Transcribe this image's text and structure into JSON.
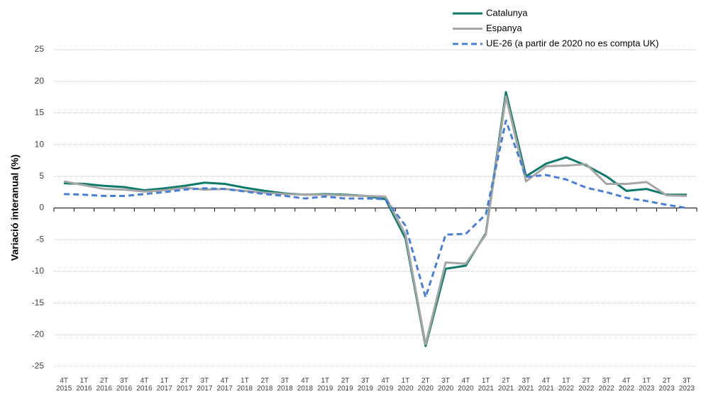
{
  "chart_data": {
    "type": "line",
    "y_label": "Variació interanual (%)",
    "categories": [
      "4T 2015",
      "1T 2016",
      "2T 2016",
      "3T 2016",
      "4T 2016",
      "1T 2017",
      "2T 2017",
      "3T 2017",
      "4T 2017",
      "1T 2018",
      "2T 2018",
      "3T 2018",
      "4T 2018",
      "1T 2019",
      "2T 2019",
      "3T 2019",
      "4T 2019",
      "1T 2020",
      "2T 2020",
      "3T 2020",
      "4T 2020",
      "1T 2021",
      "2T 2021",
      "3T 2021",
      "4T 2021",
      "1T 2022",
      "2T 2022",
      "3T 2022",
      "4T 2022",
      "1T 2023",
      "2T 2023",
      "3T 2023"
    ],
    "series": [
      {
        "name": "Catalunya",
        "color": "#0e7a6a",
        "dash": false,
        "values": [
          3.9,
          3.8,
          3.5,
          3.3,
          2.8,
          3.1,
          3.5,
          4.0,
          3.8,
          3.2,
          2.7,
          2.3,
          2.1,
          2.2,
          2.1,
          1.9,
          1.4,
          -4.8,
          -21.8,
          -9.6,
          -9.1,
          -4.0,
          18.3,
          5.0,
          7.0,
          8.0,
          6.7,
          5.0,
          2.7,
          3.0,
          2.1,
          2.1
        ]
      },
      {
        "name": "Espanya",
        "color": "#a6a6a6",
        "dash": false,
        "values": [
          4.2,
          3.6,
          3.0,
          2.9,
          2.6,
          2.8,
          3.2,
          2.9,
          3.0,
          2.7,
          2.4,
          2.2,
          2.1,
          2.1,
          2.0,
          1.9,
          1.8,
          -4.2,
          -21.5,
          -8.6,
          -8.8,
          -4.2,
          17.6,
          4.2,
          6.6,
          6.7,
          6.9,
          3.8,
          3.8,
          4.1,
          2.0,
          1.9
        ]
      },
      {
        "name": "UE-26 (a partir de 2020 no es compta UK)",
        "color": "#4a7fd4",
        "dash": true,
        "values": [
          2.2,
          2.1,
          1.9,
          1.9,
          2.2,
          2.5,
          2.9,
          3.1,
          3.0,
          2.6,
          2.2,
          1.9,
          1.5,
          1.8,
          1.5,
          1.5,
          1.4,
          -2.8,
          -14.1,
          -4.2,
          -4.1,
          -1.0,
          13.8,
          4.9,
          5.2,
          4.5,
          3.2,
          2.5,
          1.6,
          1.1,
          0.5,
          0.0
        ]
      }
    ],
    "ylim": [
      -25,
      25
    ],
    "yticks": [
      -25,
      -20,
      -15,
      -10,
      -5,
      0,
      5,
      10,
      15,
      20,
      25
    ],
    "grid": true
  }
}
